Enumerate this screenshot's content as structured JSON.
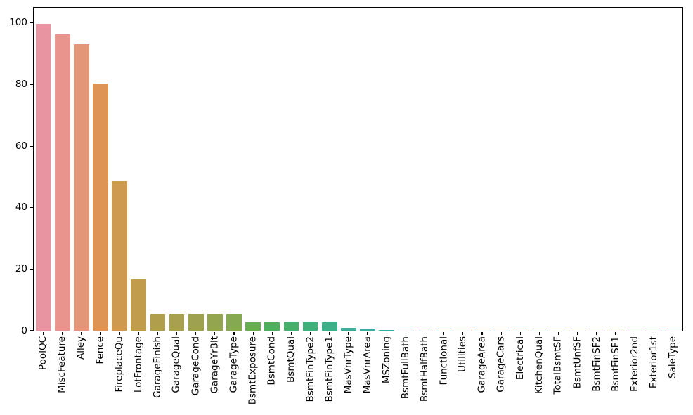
{
  "figure": {
    "background_color": "#ffffff",
    "spine_color": "#000000",
    "tick_color": "#000000"
  },
  "chart_data": {
    "type": "bar",
    "title": "",
    "xlabel": "",
    "ylabel": "",
    "grid": false,
    "legend": null,
    "ylim": [
      0,
      105
    ],
    "yticks": [
      0,
      20,
      40,
      60,
      80,
      100
    ],
    "ytick_labels": [
      "0",
      "20",
      "40",
      "60",
      "80",
      "100"
    ],
    "categories": [
      "PoolQC",
      "MiscFeature",
      "Alley",
      "Fence",
      "FireplaceQu",
      "LotFrontage",
      "GarageFinish",
      "GarageQual",
      "GarageCond",
      "GarageYrBlt",
      "GarageType",
      "BsmtExposure",
      "BsmtCond",
      "BsmtQual",
      "BsmtFinType2",
      "BsmtFinType1",
      "MasVnrType",
      "MasVnrArea",
      "MSZoning",
      "BsmtFullBath",
      "BsmtHalfBath",
      "Functional",
      "Utilities",
      "GarageArea",
      "GarageCars",
      "Electrical",
      "KitchenQual",
      "TotalBsmtSF",
      "BsmtUnfSF",
      "BsmtFinSF2",
      "BsmtFinSF1",
      "Exterior2nd",
      "Exterior1st",
      "SaleType"
    ],
    "values": [
      99.66,
      96.4,
      93.22,
      80.44,
      48.65,
      16.65,
      5.45,
      5.45,
      5.45,
      5.45,
      5.38,
      2.81,
      2.81,
      2.77,
      2.74,
      2.71,
      0.82,
      0.79,
      0.14,
      0.07,
      0.07,
      0.07,
      0.07,
      0.03,
      0.03,
      0.03,
      0.03,
      0.03,
      0.03,
      0.03,
      0.03,
      0.03,
      0.03,
      0.03
    ],
    "bar_colors": [
      "#e795a1",
      "#e9948d",
      "#e39778",
      "#dd9455",
      "#cd9a4f",
      "#c19c4b",
      "#b19e4d",
      "#a8a04e",
      "#9ea24e",
      "#93a54f",
      "#85a950",
      "#67ad53",
      "#50af5c",
      "#46b06a",
      "#40b07a",
      "#3cb089",
      "#3bae97",
      "#3aada2",
      "#39aeab",
      "#3aacb5",
      "#3caabf",
      "#40a7c9",
      "#47a4d2",
      "#50a0da",
      "#5c9ce1",
      "#6b97e7",
      "#7b92ea",
      "#8c8cea",
      "#9d86e7",
      "#ac81e2",
      "#ba7cdb",
      "#c778d2",
      "#d275c8",
      "#db73bc"
    ]
  }
}
